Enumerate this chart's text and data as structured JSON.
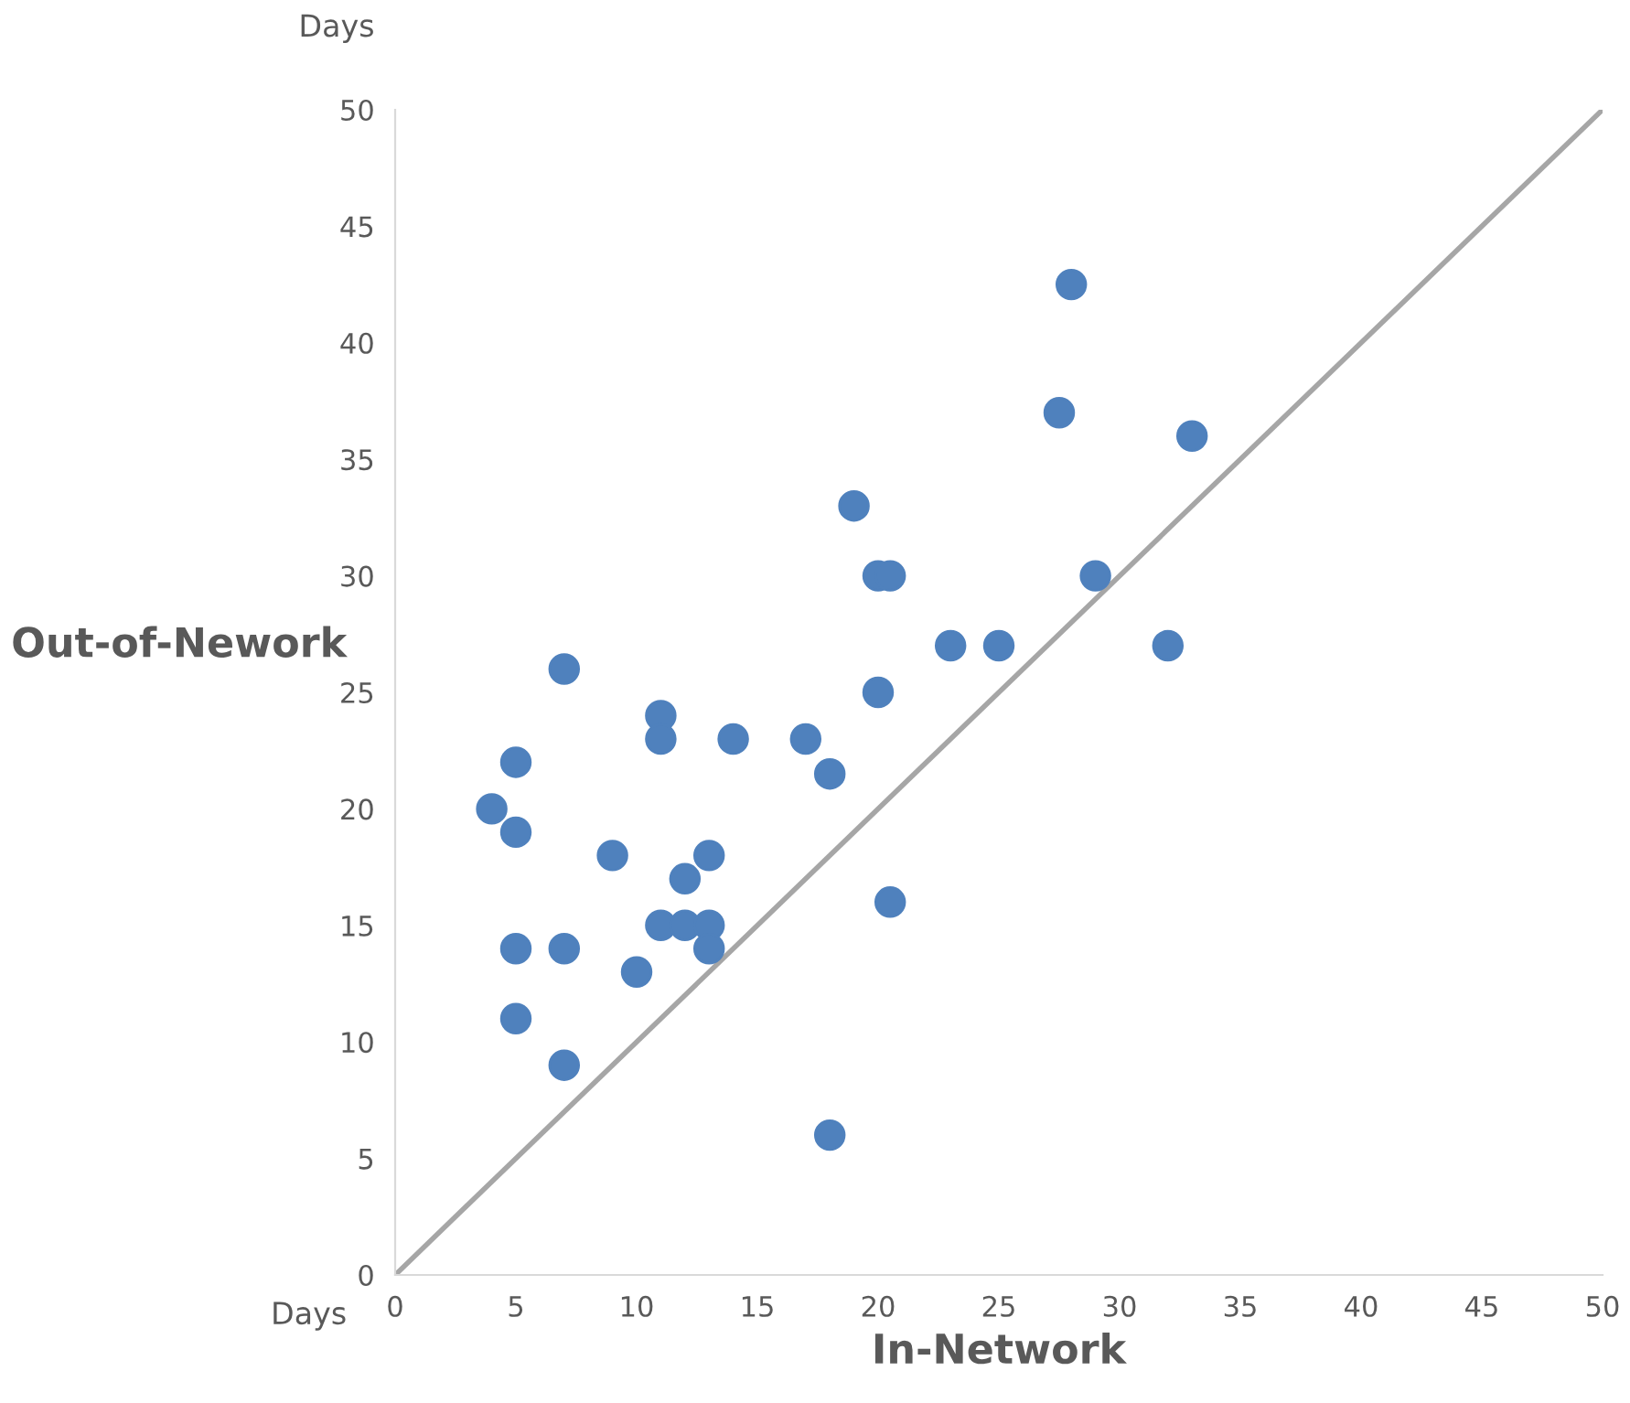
{
  "chart_data": {
    "type": "scatter",
    "xlabel": "In-Network",
    "ylabel": "Out-of-Nework",
    "annotations": [
      "Days",
      "Days"
    ],
    "xlim": [
      0,
      50
    ],
    "ylim": [
      0,
      50
    ],
    "xticks": [
      0,
      5,
      10,
      15,
      20,
      25,
      30,
      35,
      40,
      45,
      50
    ],
    "yticks": [
      0,
      5,
      10,
      15,
      20,
      25,
      30,
      35,
      40,
      45,
      50
    ],
    "grid": false,
    "legend": false,
    "marker": "circle",
    "series": [
      {
        "color": "#4f81bd",
        "x": [
          4,
          5,
          5,
          5,
          5,
          7,
          7,
          7,
          9,
          10,
          11,
          11,
          11,
          12,
          12,
          13,
          13,
          13,
          14,
          17,
          18,
          18,
          19,
          20,
          20.5,
          20,
          20.5,
          23,
          25,
          27.5,
          28,
          29,
          32,
          33
        ],
        "values": [
          20,
          22,
          19,
          14,
          11,
          26,
          14,
          9,
          18,
          13,
          24,
          23,
          15,
          17,
          15,
          18,
          15,
          14,
          23,
          23,
          21.5,
          6,
          33,
          30,
          30,
          25,
          16,
          27,
          27,
          37,
          42.5,
          30,
          27,
          36
        ]
      },
      {
        "type": "line",
        "color": "#a6a6a6",
        "line_style": "solid",
        "marker": "none",
        "x": [
          0,
          50
        ],
        "values": [
          0,
          50
        ]
      }
    ]
  }
}
